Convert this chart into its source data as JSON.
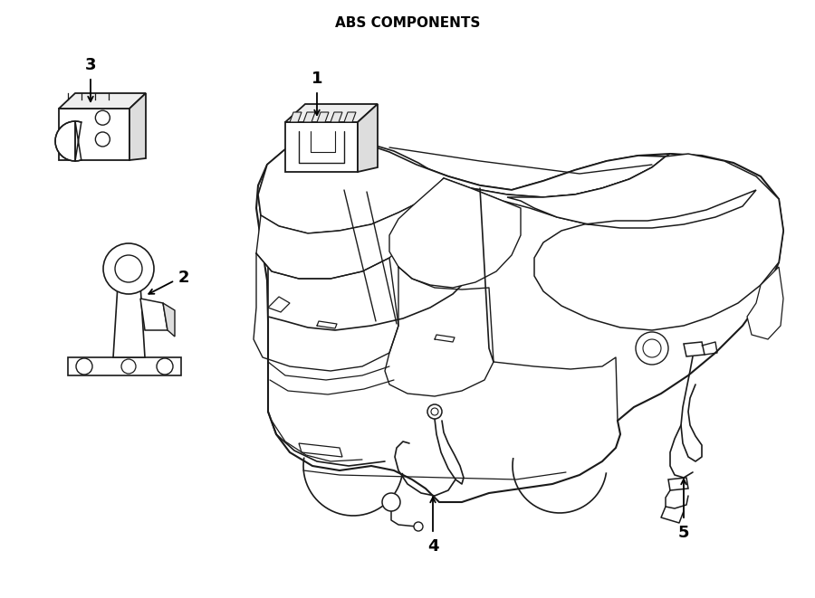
{
  "title": "ABS COMPONENTS",
  "bg_color": "#ffffff",
  "line_color": "#1a1a1a",
  "title_fontsize": 11,
  "label_fontsize": 13,
  "figsize": [
    9.0,
    6.61
  ],
  "dpi": 100
}
